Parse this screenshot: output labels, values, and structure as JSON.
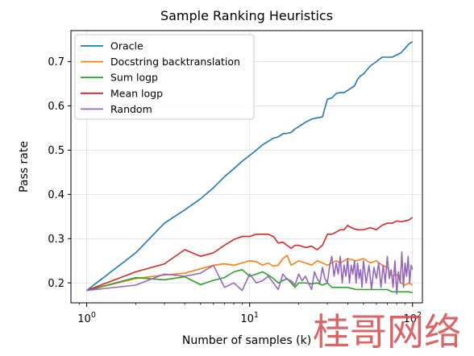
{
  "chart_data": {
    "type": "line",
    "title": "Sample Ranking Heuristics",
    "xlabel": "Number of samples (k)",
    "ylabel": "Pass rate",
    "xscale": "log",
    "xlim": [
      0.8,
      115
    ],
    "ylim": [
      0.155,
      0.77
    ],
    "grid": true,
    "legend": "top-left",
    "x_ticks": [
      1,
      10,
      100
    ],
    "x_tick_labels": [
      "10^0",
      "10^1",
      "10^2"
    ],
    "y_ticks": [
      0.2,
      0.3,
      0.4,
      0.5,
      0.6,
      0.7
    ],
    "y_tick_labels": [
      "0.2",
      "0.3",
      "0.4",
      "0.5",
      "0.6",
      "0.7"
    ],
    "series": [
      {
        "name": "Oracle",
        "color": "#1f77b4",
        "x": [
          1,
          2,
          3,
          4,
          5,
          6,
          7,
          8,
          9,
          10,
          11,
          12,
          13,
          14,
          15,
          16,
          17,
          18,
          19,
          20,
          22,
          24,
          26,
          28,
          30,
          32,
          34,
          36,
          38,
          40,
          42,
          44,
          46,
          48,
          50,
          55,
          60,
          65,
          70,
          75,
          80,
          85,
          90,
          95,
          100
        ],
        "y": [
          0.183,
          0.268,
          0.335,
          0.365,
          0.39,
          0.415,
          0.44,
          0.458,
          0.475,
          0.488,
          0.5,
          0.512,
          0.52,
          0.527,
          0.53,
          0.537,
          0.538,
          0.54,
          0.548,
          0.553,
          0.563,
          0.57,
          0.573,
          0.575,
          0.615,
          0.618,
          0.628,
          0.63,
          0.63,
          0.635,
          0.64,
          0.645,
          0.66,
          0.668,
          0.672,
          0.69,
          0.7,
          0.71,
          0.71,
          0.71,
          0.715,
          0.72,
          0.73,
          0.74,
          0.745
        ]
      },
      {
        "name": "Docstring backtranslation",
        "color": "#ff7f0e",
        "x": [
          1,
          2,
          3,
          4,
          5,
          6,
          7,
          8,
          9,
          10,
          11,
          12,
          13,
          14,
          15,
          16,
          17,
          18,
          19,
          20,
          22,
          24,
          26,
          28,
          30,
          32,
          34,
          36,
          38,
          40,
          45,
          50,
          55,
          60,
          65,
          70,
          75,
          80,
          85,
          90,
          95,
          100
        ],
        "y": [
          0.183,
          0.21,
          0.218,
          0.222,
          0.232,
          0.24,
          0.243,
          0.24,
          0.245,
          0.25,
          0.248,
          0.24,
          0.245,
          0.238,
          0.24,
          0.255,
          0.262,
          0.24,
          0.245,
          0.25,
          0.245,
          0.24,
          0.25,
          0.245,
          0.24,
          0.245,
          0.25,
          0.245,
          0.25,
          0.255,
          0.25,
          0.255,
          0.245,
          0.25,
          0.24,
          0.235,
          0.215,
          0.22,
          0.2,
          0.195,
          0.2,
          0.195
        ]
      },
      {
        "name": "Sum logp",
        "color": "#2ca02c",
        "x": [
          1,
          2,
          3,
          4,
          5,
          6,
          7,
          8,
          9,
          10,
          11,
          12,
          13,
          14,
          15,
          16,
          17,
          18,
          19,
          20,
          22,
          24,
          26,
          28,
          30,
          32,
          34,
          36,
          38,
          40,
          45,
          50,
          55,
          60,
          65,
          70,
          75,
          80,
          85,
          90,
          95,
          100
        ],
        "y": [
          0.183,
          0.212,
          0.207,
          0.214,
          0.196,
          0.206,
          0.212,
          0.225,
          0.23,
          0.215,
          0.22,
          0.225,
          0.218,
          0.21,
          0.2,
          0.205,
          0.21,
          0.2,
          0.19,
          0.2,
          0.2,
          0.198,
          0.2,
          0.195,
          0.2,
          0.19,
          0.19,
          0.19,
          0.19,
          0.19,
          0.185,
          0.185,
          0.185,
          0.185,
          0.185,
          0.185,
          0.18,
          0.18,
          0.18,
          0.18,
          0.18,
          0.178
        ]
      },
      {
        "name": "Mean logp",
        "color": "#d62728",
        "x": [
          1,
          2,
          3,
          4,
          5,
          6,
          7,
          8,
          9,
          10,
          11,
          12,
          13,
          14,
          15,
          16,
          17,
          18,
          19,
          20,
          22,
          24,
          26,
          28,
          30,
          32,
          34,
          36,
          38,
          40,
          42,
          44,
          46,
          48,
          50,
          55,
          60,
          65,
          70,
          75,
          80,
          85,
          90,
          95,
          100
        ],
        "y": [
          0.183,
          0.225,
          0.243,
          0.275,
          0.26,
          0.268,
          0.285,
          0.298,
          0.305,
          0.305,
          0.31,
          0.31,
          0.31,
          0.305,
          0.29,
          0.292,
          0.285,
          0.278,
          0.285,
          0.285,
          0.28,
          0.283,
          0.275,
          0.285,
          0.31,
          0.31,
          0.315,
          0.32,
          0.32,
          0.33,
          0.325,
          0.322,
          0.32,
          0.32,
          0.32,
          0.325,
          0.32,
          0.33,
          0.335,
          0.335,
          0.34,
          0.338,
          0.34,
          0.342,
          0.348
        ]
      },
      {
        "name": "Random",
        "color": "#9467bd",
        "x": [
          1,
          2,
          3,
          4,
          5,
          6,
          7,
          8,
          9,
          10,
          11,
          12,
          13,
          14,
          15,
          16,
          17,
          18,
          19,
          20,
          21,
          22,
          23,
          24,
          25,
          26,
          27,
          28,
          29,
          30,
          31,
          32,
          33,
          34,
          35,
          36,
          37,
          38,
          39,
          40,
          41,
          42,
          43,
          44,
          45,
          46,
          47,
          48,
          49,
          50,
          52,
          54,
          56,
          58,
          60,
          62,
          64,
          66,
          68,
          70,
          72,
          74,
          76,
          78,
          80,
          82,
          84,
          86,
          88,
          90,
          92,
          94,
          96,
          98,
          100
        ],
        "y": [
          0.183,
          0.195,
          0.22,
          0.215,
          0.222,
          0.24,
          0.19,
          0.2,
          0.183,
          0.22,
          0.2,
          0.205,
          0.215,
          0.2,
          0.185,
          0.22,
          0.208,
          0.205,
          0.195,
          0.22,
          0.205,
          0.215,
          0.2,
          0.185,
          0.225,
          0.21,
          0.2,
          0.235,
          0.21,
          0.2,
          0.24,
          0.26,
          0.215,
          0.245,
          0.22,
          0.26,
          0.2,
          0.24,
          0.215,
          0.255,
          0.2,
          0.24,
          0.22,
          0.25,
          0.2,
          0.245,
          0.21,
          0.23,
          0.19,
          0.25,
          0.2,
          0.24,
          0.185,
          0.235,
          0.21,
          0.245,
          0.19,
          0.24,
          0.2,
          0.26,
          0.21,
          0.23,
          0.19,
          0.25,
          0.175,
          0.225,
          0.2,
          0.27,
          0.19,
          0.245,
          0.215,
          0.26,
          0.2,
          0.24,
          0.23
        ]
      }
    ]
  },
  "watermark": {
    "text": "桂哥网络",
    "color": "#d24b4b"
  }
}
